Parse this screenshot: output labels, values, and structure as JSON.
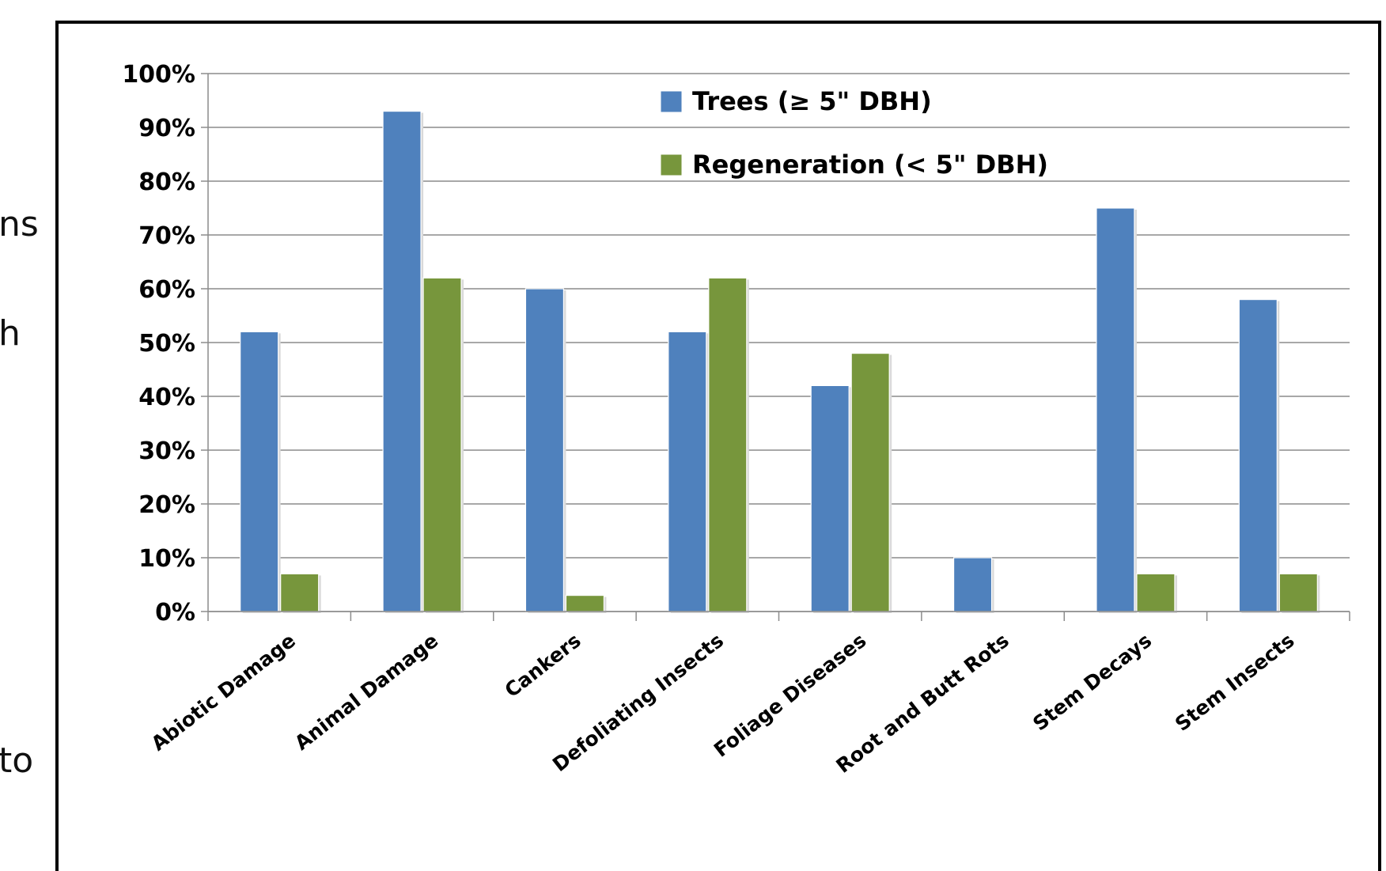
{
  "side_fragments": [
    {
      "text": "ns"
    },
    {
      "text": "h"
    },
    {
      "text": "to"
    }
  ],
  "chart_data": {
    "type": "bar",
    "categories": [
      "Abiotic Damage",
      "Animal Damage",
      "Cankers",
      "Defoliating Insects",
      "Foliage Diseases",
      "Root and Butt Rots",
      "Stem Decays",
      "Stem Insects"
    ],
    "series": [
      {
        "name": "Trees (≥ 5\" DBH)",
        "color": "#4F81BD",
        "values": [
          52,
          93,
          60,
          52,
          42,
          10,
          75,
          58
        ]
      },
      {
        "name": "Regeneration (< 5\" DBH)",
        "color": "#77963C",
        "values": [
          7,
          62,
          3,
          62,
          48,
          0,
          7,
          7
        ]
      }
    ],
    "y_ticks": [
      "0%",
      "10%",
      "20%",
      "30%",
      "40%",
      "50%",
      "60%",
      "70%",
      "80%",
      "90%",
      "100%"
    ],
    "ylim": [
      0,
      100
    ],
    "grid": true,
    "legend_position": "top-center"
  }
}
